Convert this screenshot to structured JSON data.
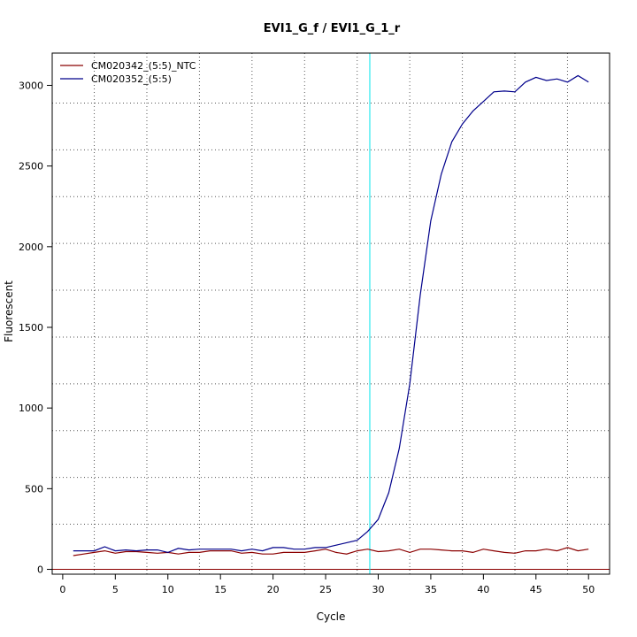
{
  "chart_data": {
    "type": "line",
    "title": "EVI1_G_f / EVI1_G_1_r",
    "xlabel": "Cycle",
    "ylabel": "Fluorescent",
    "xlim": [
      -1,
      52
    ],
    "ylim": [
      -30,
      3200
    ],
    "x_ticks": [
      0,
      5,
      10,
      15,
      20,
      25,
      30,
      35,
      40,
      45,
      50
    ],
    "y_ticks": [
      0,
      500,
      1000,
      1500,
      2000,
      2500,
      3000
    ],
    "grid": true,
    "grid_x_values": [
      3,
      8,
      13,
      18,
      23,
      28,
      33,
      38,
      43,
      48
    ],
    "grid_y_values": [
      280,
      570,
      860,
      1150,
      1440,
      1730,
      2020,
      2310,
      2600,
      2890
    ],
    "threshold_x": 29.2,
    "threshold_color": "#00E5EE",
    "baseline_y": 0,
    "baseline_color": "#8B0000",
    "legend_position": "top-left",
    "x": [
      1,
      2,
      3,
      4,
      5,
      6,
      7,
      8,
      9,
      10,
      11,
      12,
      13,
      14,
      15,
      16,
      17,
      18,
      19,
      20,
      21,
      22,
      23,
      24,
      25,
      26,
      27,
      28,
      29,
      30,
      31,
      32,
      33,
      34,
      35,
      36,
      37,
      38,
      39,
      40,
      41,
      42,
      43,
      44,
      45,
      46,
      47,
      48,
      49,
      50
    ],
    "series": [
      {
        "name": "CM020342_(5:5)_NTC",
        "color": "#8B0000",
        "values": [
          85,
          95,
          105,
          115,
          100,
          110,
          110,
          105,
          100,
          105,
          95,
          105,
          105,
          115,
          115,
          115,
          100,
          105,
          95,
          95,
          105,
          105,
          105,
          115,
          125,
          105,
          95,
          115,
          125,
          110,
          115,
          125,
          105,
          125,
          125,
          120,
          115,
          115,
          105,
          125,
          115,
          105,
          100,
          115,
          115,
          125,
          115,
          135,
          115,
          125
        ]
      },
      {
        "name": "CM020352_(5:5)",
        "color": "#00008B",
        "values": [
          115,
          115,
          115,
          140,
          115,
          120,
          115,
          120,
          120,
          105,
          130,
          120,
          125,
          125,
          125,
          125,
          115,
          125,
          115,
          135,
          135,
          125,
          125,
          135,
          135,
          150,
          165,
          180,
          235,
          310,
          475,
          750,
          1150,
          1700,
          2160,
          2450,
          2650,
          2760,
          2840,
          2900,
          2960,
          2965,
          2960,
          3020,
          3050,
          3030,
          3040,
          3020,
          3060,
          3020
        ]
      }
    ]
  }
}
